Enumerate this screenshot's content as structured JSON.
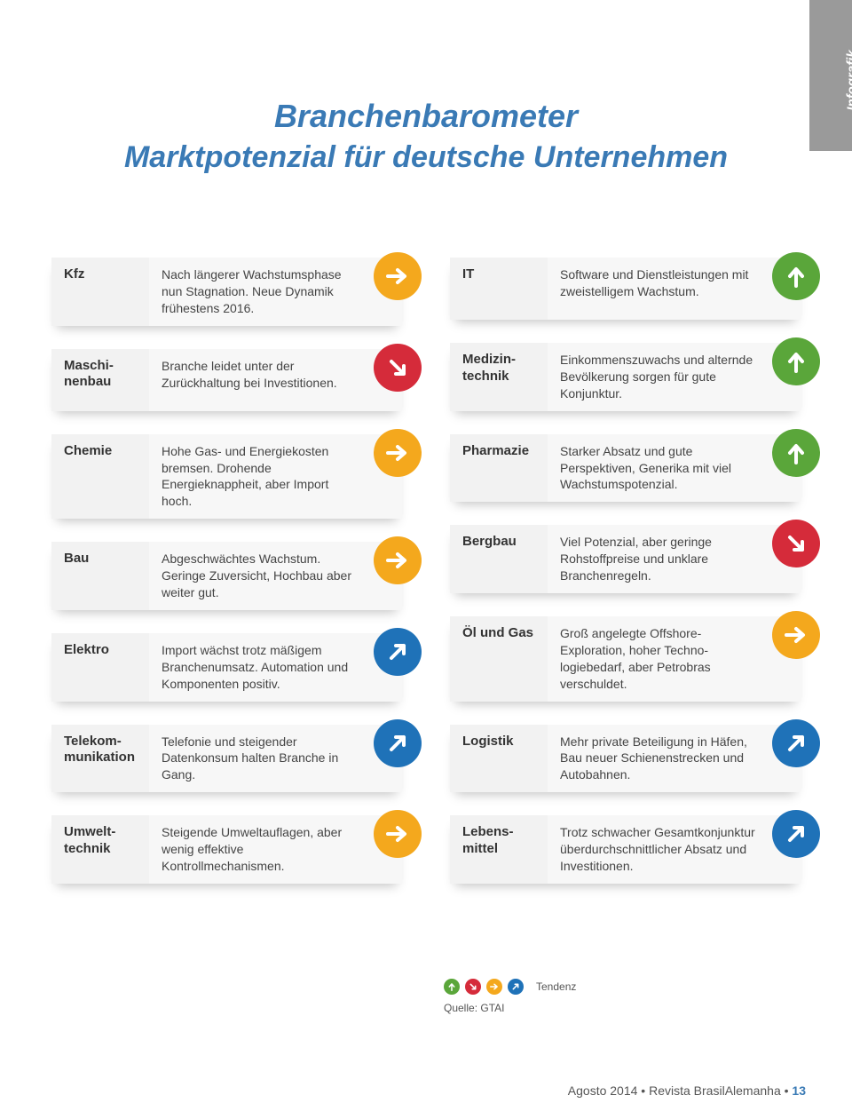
{
  "sideTab": "Infografik",
  "titleLine1": "Branchenbarometer",
  "titleLine2": "Marktpotenzial für deutsche Unternehmen",
  "colors": {
    "green": "#5aa63a",
    "red": "#d52b3a",
    "orange": "#f4a81d",
    "blue": "#1f72b8",
    "panelLight": "#f7f7f7",
    "panelDark": "#f2f2f2",
    "brand": "#3a7ab5"
  },
  "icons": {
    "up": "arrow-up",
    "down": "arrow-down-right",
    "flat": "arrow-right",
    "slightUp": "arrow-up-right"
  },
  "legendLabel": "Tendenz",
  "legendIcons": [
    {
      "color": "#5aa63a",
      "icon": "arrow-up"
    },
    {
      "color": "#d52b3a",
      "icon": "arrow-down-right"
    },
    {
      "color": "#f4a81d",
      "icon": "arrow-right"
    },
    {
      "color": "#1f72b8",
      "icon": "arrow-up-right"
    }
  ],
  "source": "Quelle: GTAI",
  "footer": {
    "date": "Agosto 2014",
    "sep": " • ",
    "mag": "Revista BrasilAlemanha",
    "page": "13"
  },
  "leftCol": [
    {
      "sector": "Kfz",
      "text": "Nach längerer Wachstums­phase nun Stagnation. Neue Dynamik frühestens 2016.",
      "trend": "flat"
    },
    {
      "sector": "Maschi­nenbau",
      "text": "Branche leidet unter der Zurückhaltung bei Investi­tionen.",
      "trend": "down"
    },
    {
      "sector": "Chemie",
      "text": "Hohe Gas- und Energiekos­ten bremsen. Drohende Energieknappheit, aber Import hoch.",
      "trend": "flat"
    },
    {
      "sector": "Bau",
      "text": "Abgeschwächtes Wachstum. Geringe Zuversicht, Hoch­bau aber weiter gut.",
      "trend": "flat"
    },
    {
      "sector": "Elektro",
      "text": "Import wächst trotz mäßi­gem Branchenumsatz. Au­tomation und Komponen­ten positiv.",
      "trend": "slightUp"
    },
    {
      "sector": "Telekom­munikation",
      "text": "Telefonie und steigender Datenkonsum halten Bran­che in Gang.",
      "trend": "slightUp"
    },
    {
      "sector": "Umwelt­technik",
      "text": "Steigende Umweltaufla­gen, aber wenig effektive Kontrollmechanismen.",
      "trend": "flat"
    }
  ],
  "rightCol": [
    {
      "sector": "IT",
      "text": "Software und Dienstleis­tungen mit zweistelligem Wachstum.",
      "trend": "up"
    },
    {
      "sector": "Medizin­technik",
      "text": "Einkommenszuwachs und alternde Bevölkerung sor­gen für gute Konjunktur.",
      "trend": "up"
    },
    {
      "sector": "Pharmazie",
      "text": "Starker Absatz und gute Perspektiven, Generika mit viel Wachstumspotenzial.",
      "trend": "up"
    },
    {
      "sector": "Bergbau",
      "text": "Viel Potenzial, aber geringe Rohstoffpreise und unklare Branchenregeln.",
      "trend": "down"
    },
    {
      "sector": "Öl und Gas",
      "text": "Groß angelegte Offshore-Exploration, hoher Techno­logiebedarf, aber Petrobras verschuldet.",
      "trend": "flat"
    },
    {
      "sector": "Logistik",
      "text": "Mehr private Beteiligung in Häfen, Bau neuer Schienen­strecken und Autobahnen.",
      "trend": "slightUp"
    },
    {
      "sector": "Lebens­mittel",
      "text": "Trotz schwacher Gesamt­konjunktur überdurch­schnittlicher Absatz und Investitionen.",
      "trend": "slightUp"
    }
  ]
}
